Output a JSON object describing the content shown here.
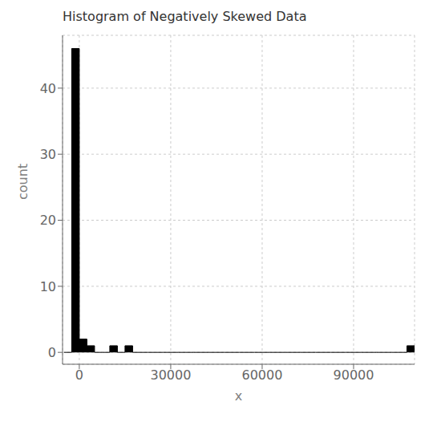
{
  "chart_data": {
    "type": "histogram",
    "title": "Histogram of Negatively Skewed Data",
    "xlabel": "x",
    "ylabel": "count",
    "bins": [
      -5000,
      -2500,
      0,
      2500,
      5000,
      7500,
      10000,
      12500,
      15000,
      17500,
      20000,
      22500,
      25000,
      27500,
      30000,
      32500,
      35000,
      37500,
      40000,
      42500,
      45000,
      47500,
      50000,
      52500,
      55000,
      57500,
      60000,
      62500,
      65000,
      67500,
      70000,
      72500,
      75000,
      77500,
      80000,
      82500,
      85000,
      87500,
      90000,
      92500,
      95000,
      97500,
      100000,
      102500,
      105000,
      107500,
      110000
    ],
    "values": [
      0,
      46,
      2,
      1,
      0,
      0,
      1,
      0,
      1,
      0,
      0,
      0,
      0,
      0,
      0,
      0,
      0,
      0,
      0,
      0,
      0,
      0,
      0,
      0,
      0,
      0,
      0,
      0,
      0,
      0,
      0,
      0,
      0,
      0,
      0,
      0,
      0,
      0,
      0,
      0,
      0,
      0,
      0,
      0,
      0,
      1
    ],
    "color": "#000000",
    "xlim": [
      -5500,
      110000
    ],
    "ylim": [
      -1.8,
      48
    ],
    "xticks": [
      0,
      30000,
      60000,
      90000
    ],
    "yticks": [
      0,
      10,
      20,
      30,
      40
    ],
    "grid": true
  }
}
